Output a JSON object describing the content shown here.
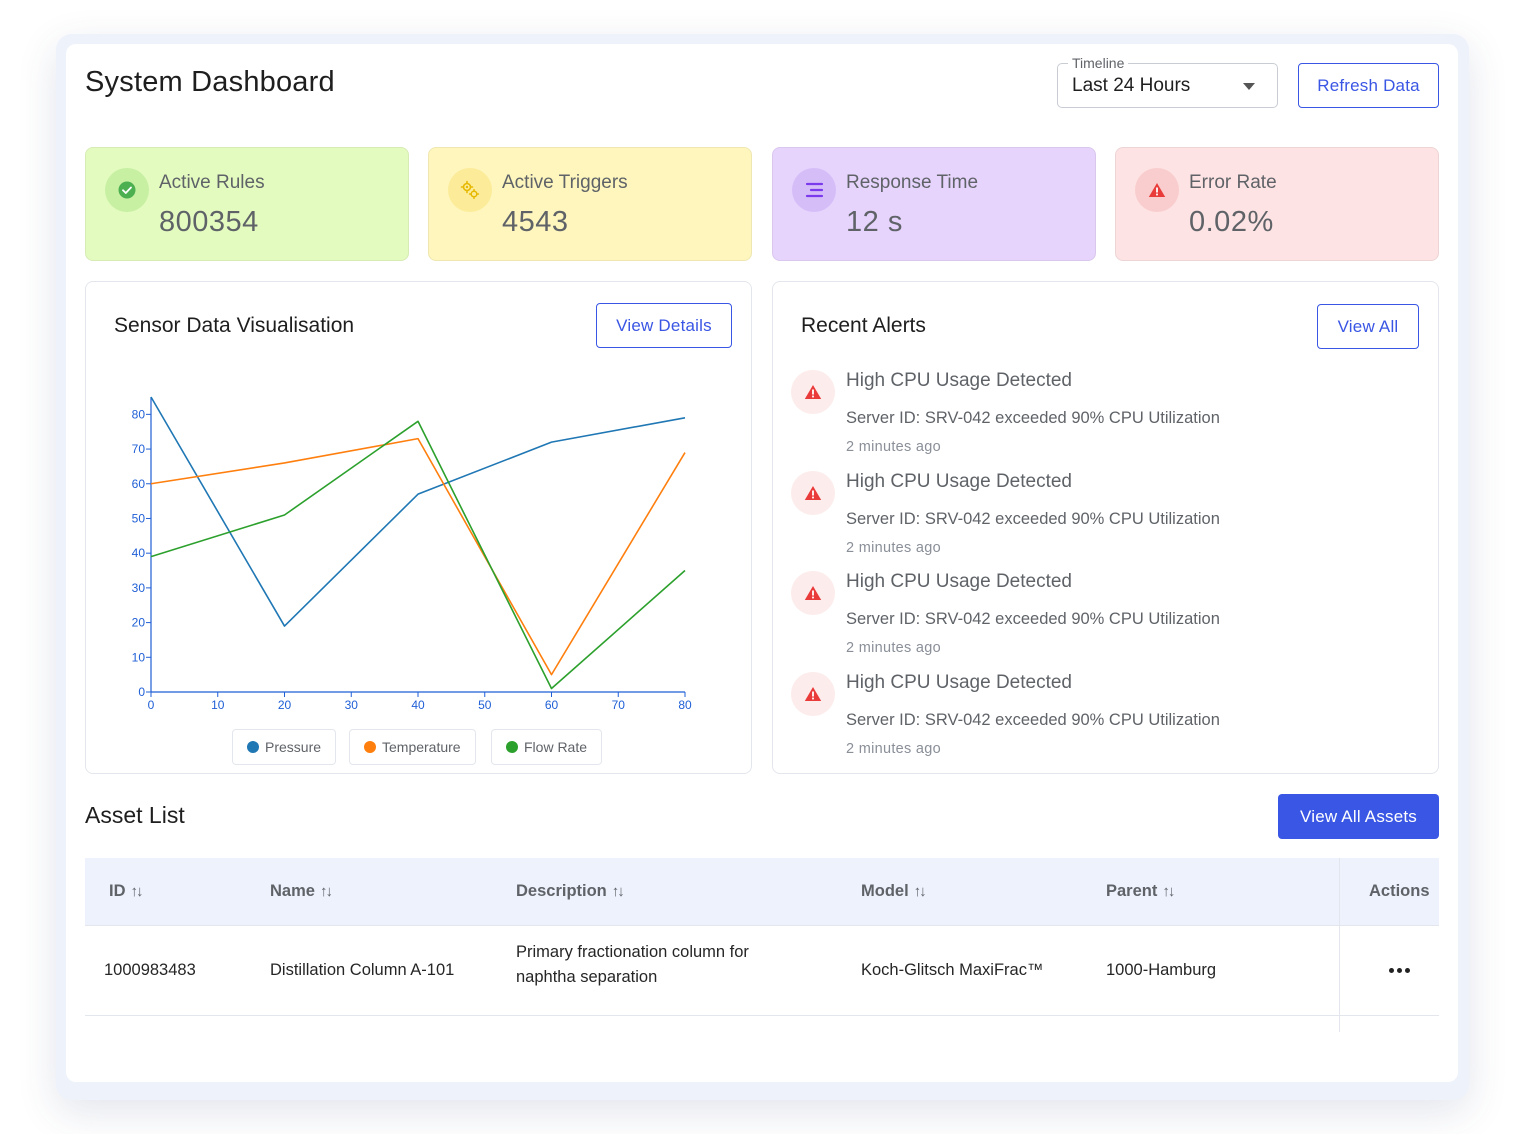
{
  "header": {
    "title": "System Dashboard",
    "timeline": {
      "label": "Timeline",
      "value": "Last 24 Hours"
    },
    "refresh_label": "Refresh Data"
  },
  "stats": [
    {
      "label": "Active Rules",
      "value": "800354",
      "icon": "check-circle-icon",
      "bg": "#e4fbc0",
      "icon_bg": "#c7f0a3",
      "icon_color": "#4caf50"
    },
    {
      "label": "Active Triggers",
      "value": "4543",
      "icon": "gears-icon",
      "bg": "#fef6bd",
      "icon_bg": "#fcec9a",
      "icon_color": "#e6b800"
    },
    {
      "label": "Response Time",
      "value": "12 s",
      "icon": "menu-lines-icon",
      "bg": "#e7d4fd",
      "icon_bg": "#d5bdf8",
      "icon_color": "#7c3aed"
    },
    {
      "label": "Error Rate",
      "value": "0.02%",
      "icon": "warning-icon",
      "bg": "#fde3e3",
      "icon_bg": "#f9cdcd",
      "icon_color": "#ea3b3b"
    }
  ],
  "sensor": {
    "title": "Sensor Data Visualisation",
    "details_label": "View Details"
  },
  "chart_data": {
    "type": "line",
    "x": [
      0,
      20,
      40,
      60,
      80
    ],
    "series": [
      {
        "name": "Pressure",
        "color": "#1f77b4",
        "values": [
          85,
          19,
          57,
          72,
          79
        ]
      },
      {
        "name": "Temperature",
        "color": "#ff7f0e",
        "values": [
          60,
          66,
          73,
          5,
          69
        ]
      },
      {
        "name": "Flow Rate",
        "color": "#2ca02c",
        "values": [
          39,
          51,
          78,
          1,
          35
        ]
      }
    ],
    "xticks": [
      0,
      10,
      20,
      30,
      40,
      50,
      60,
      70,
      80
    ],
    "yticks": [
      0,
      10,
      20,
      30,
      40,
      50,
      60,
      70,
      80
    ],
    "xlim": [
      0,
      80
    ],
    "ylim": [
      0,
      85
    ],
    "axis_color": "#1f5fd6",
    "grid": false,
    "legend": "bottom"
  },
  "alerts": {
    "title": "Recent Alerts",
    "view_all_label": "View All",
    "items": [
      {
        "title": "High CPU Usage Detected",
        "description": "Server ID: SRV-042 exceeded 90% CPU Utilization",
        "time": "2 minutes ago"
      },
      {
        "title": "High CPU Usage Detected",
        "description": "Server ID: SRV-042 exceeded 90% CPU Utilization",
        "time": "2 minutes ago"
      },
      {
        "title": "High CPU Usage Detected",
        "description": "Server ID: SRV-042 exceeded 90% CPU Utilization",
        "time": "2 minutes ago"
      },
      {
        "title": "High CPU Usage Detected",
        "description": "Server ID: SRV-042 exceeded 90% CPU Utilization",
        "time": "2 minutes ago"
      }
    ]
  },
  "assets": {
    "title": "Asset List",
    "view_all_label": "View All Assets",
    "columns": [
      "ID",
      "Name",
      "Description",
      "Model",
      "Parent",
      "Actions"
    ],
    "rows": [
      {
        "id": "1000983483",
        "name": "Distillation Column A-101",
        "description": "Primary fractionation column for naphtha separation",
        "model": "Koch-Glitsch MaxiFrac™",
        "parent": "1000-Hamburg"
      }
    ]
  }
}
